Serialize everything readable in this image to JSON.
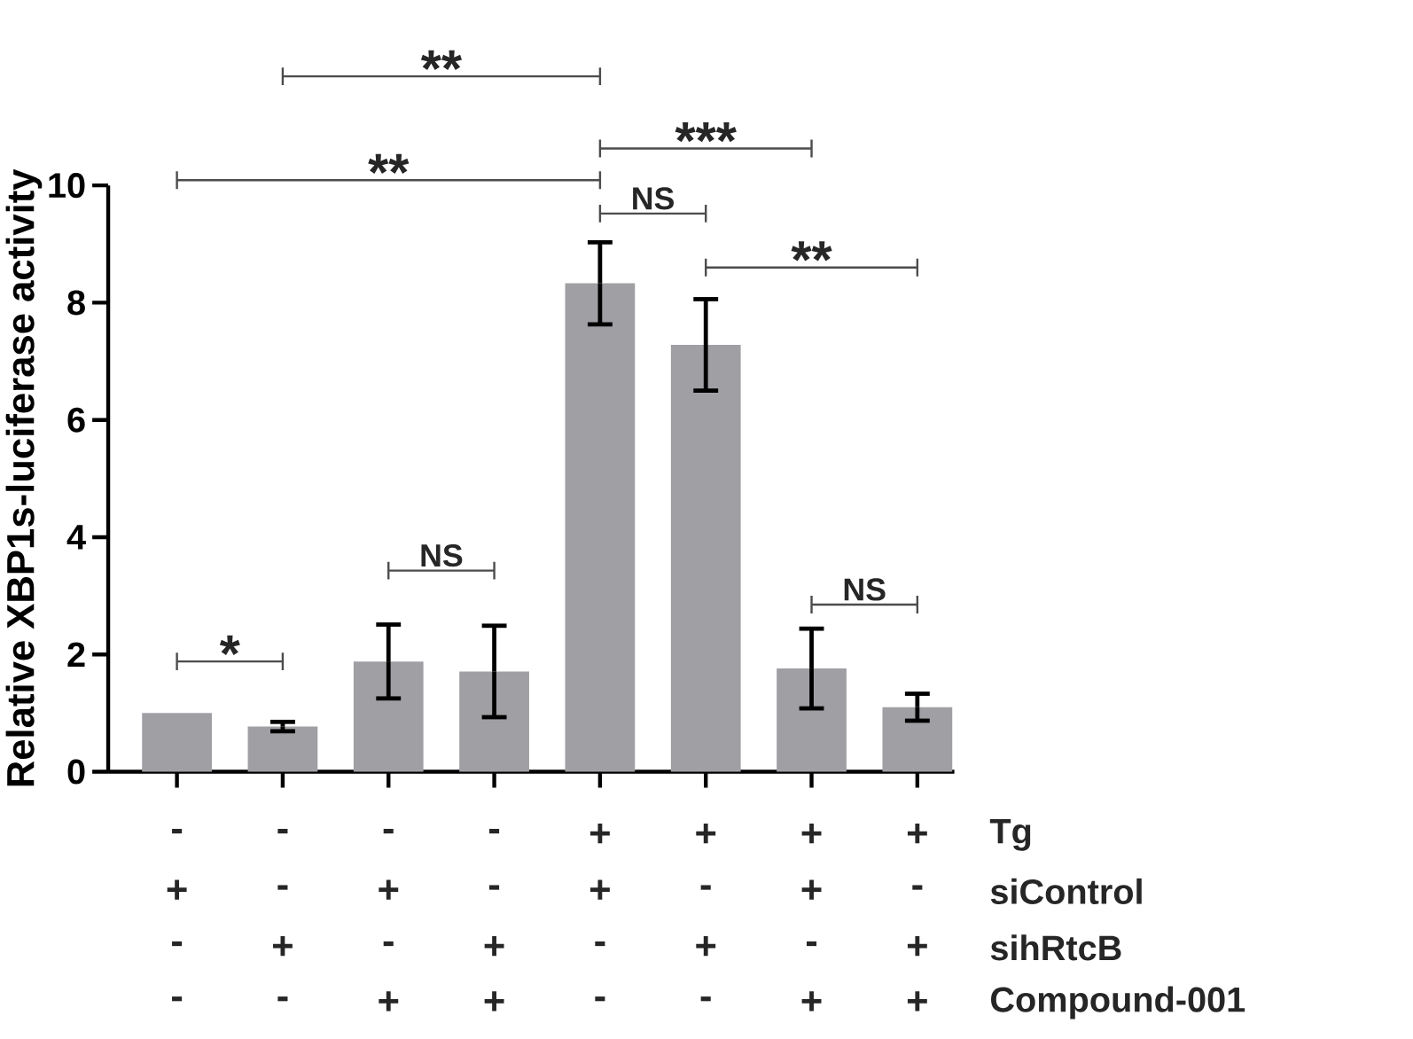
{
  "chart_data": {
    "type": "bar",
    "ylabel": "Relative XBP1s-luciferase activity",
    "categories": [
      null,
      null,
      null,
      null,
      null,
      null,
      null,
      null
    ],
    "values": [
      1.0,
      0.77,
      1.88,
      1.71,
      8.33,
      7.28,
      1.76,
      1.1
    ],
    "errors": [
      null,
      0.08,
      0.63,
      0.78,
      0.7,
      0.78,
      0.68,
      0.23
    ],
    "color": "#a09fa4",
    "ylim": [
      0,
      10
    ],
    "yticks": [
      0,
      2,
      4,
      6,
      8,
      10
    ],
    "annotations": [
      "**",
      "**",
      "***",
      "NS",
      "**",
      "NS",
      "NS",
      "*",
      "Tg",
      "-",
      "-",
      "-",
      "-",
      "+",
      "+",
      "+",
      "+",
      "siControl",
      "+",
      "-",
      "+",
      "-",
      "+",
      "-",
      "+",
      "-",
      "sihRtcB",
      "-",
      "+",
      "-",
      "+",
      "-",
      "+",
      "-",
      "+",
      "Compound-001",
      "-",
      "-",
      "+",
      "+",
      "-",
      "-",
      "+",
      "+"
    ]
  }
}
